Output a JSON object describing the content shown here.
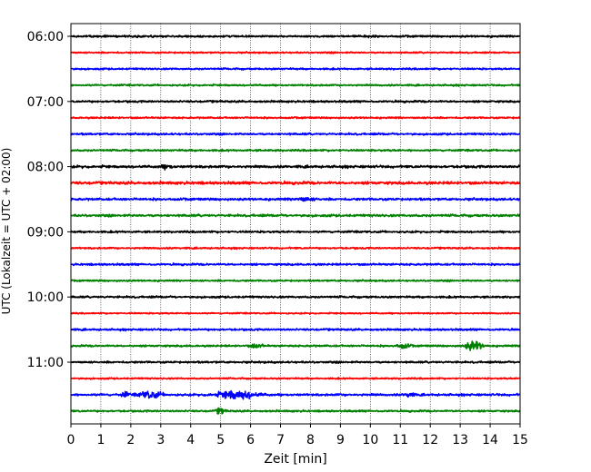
{
  "chart_data": {
    "type": "line",
    "title": "",
    "xlabel": "Zeit  [min]",
    "ylabel": "UTC (Lokalzeit = UTC + 02:00)",
    "xlim": [
      0,
      15
    ],
    "xticks": [
      0,
      1,
      2,
      3,
      4,
      5,
      6,
      7,
      8,
      9,
      10,
      11,
      12,
      13,
      14,
      15
    ],
    "grid_x": true,
    "grid_style": "dotted",
    "trace_interval_minutes": 15,
    "yticks": [
      {
        "label": "06:00",
        "row": 0
      },
      {
        "label": "07:00",
        "row": 4
      },
      {
        "label": "08:00",
        "row": 8
      },
      {
        "label": "09:00",
        "row": 12
      },
      {
        "label": "10:00",
        "row": 16
      },
      {
        "label": "11:00",
        "row": 20
      }
    ],
    "trace_colors": [
      "#000000",
      "#ff0000",
      "#0000ff",
      "#008000"
    ],
    "traces": [
      {
        "start": "06:00",
        "color": "#000000",
        "noise": 0.25,
        "events": []
      },
      {
        "start": "06:15",
        "color": "#ff0000",
        "noise": 0.2,
        "events": []
      },
      {
        "start": "06:30",
        "color": "#0000ff",
        "noise": 0.22,
        "events": []
      },
      {
        "start": "06:45",
        "color": "#008000",
        "noise": 0.22,
        "events": []
      },
      {
        "start": "07:00",
        "color": "#000000",
        "noise": 0.25,
        "events": []
      },
      {
        "start": "07:15",
        "color": "#ff0000",
        "noise": 0.22,
        "events": []
      },
      {
        "start": "07:30",
        "color": "#0000ff",
        "noise": 0.25,
        "events": []
      },
      {
        "start": "07:45",
        "color": "#008000",
        "noise": 0.24,
        "events": []
      },
      {
        "start": "08:00",
        "color": "#000000",
        "noise": 0.32,
        "events": [
          {
            "t": 3.2,
            "amp": 0.4,
            "dur": 0.2
          }
        ]
      },
      {
        "start": "08:15",
        "color": "#ff0000",
        "noise": 0.35,
        "events": []
      },
      {
        "start": "08:30",
        "color": "#0000ff",
        "noise": 0.3,
        "events": [
          {
            "t": 7.8,
            "amp": 0.4,
            "dur": 0.3
          }
        ]
      },
      {
        "start": "08:45",
        "color": "#008000",
        "noise": 0.3,
        "events": []
      },
      {
        "start": "09:00",
        "color": "#000000",
        "noise": 0.25,
        "events": []
      },
      {
        "start": "09:15",
        "color": "#ff0000",
        "noise": 0.22,
        "events": []
      },
      {
        "start": "09:30",
        "color": "#0000ff",
        "noise": 0.25,
        "events": []
      },
      {
        "start": "09:45",
        "color": "#008000",
        "noise": 0.22,
        "events": []
      },
      {
        "start": "10:00",
        "color": "#000000",
        "noise": 0.25,
        "events": []
      },
      {
        "start": "10:15",
        "color": "#ff0000",
        "noise": 0.18,
        "events": []
      },
      {
        "start": "10:30",
        "color": "#0000ff",
        "noise": 0.25,
        "events": []
      },
      {
        "start": "10:45",
        "color": "#008000",
        "noise": 0.24,
        "events": [
          {
            "t": 6.2,
            "amp": 0.5,
            "dur": 0.2
          },
          {
            "t": 11.1,
            "amp": 0.6,
            "dur": 0.2
          },
          {
            "t": 13.45,
            "amp": 1.4,
            "dur": 0.25
          }
        ]
      },
      {
        "start": "11:00",
        "color": "#000000",
        "noise": 0.25,
        "events": []
      },
      {
        "start": "11:15",
        "color": "#ff0000",
        "noise": 0.2,
        "events": []
      },
      {
        "start": "11:30",
        "color": "#0000ff",
        "noise": 0.28,
        "events": [
          {
            "t": 1.8,
            "amp": 0.7,
            "dur": 0.1
          },
          {
            "t": 2.65,
            "amp": 1.0,
            "dur": 0.35
          },
          {
            "t": 5.55,
            "amp": 1.2,
            "dur": 0.6
          },
          {
            "t": 11.3,
            "amp": 0.7,
            "dur": 0.12
          }
        ]
      },
      {
        "start": "11:45",
        "color": "#008000",
        "noise": 0.24,
        "events": [
          {
            "t": 5.0,
            "amp": 0.9,
            "dur": 0.12
          }
        ]
      }
    ]
  }
}
